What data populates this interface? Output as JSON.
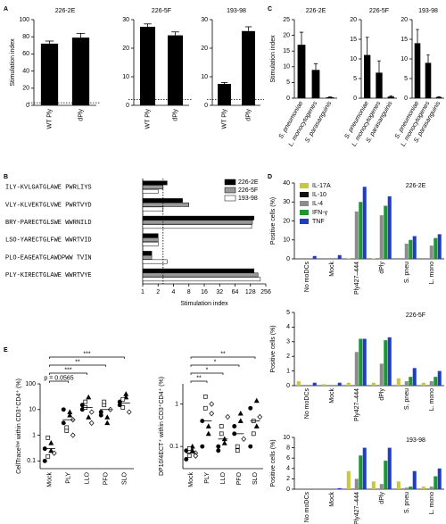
{
  "chart_data": [
    {
      "type": "bar",
      "panel": "A",
      "title": "226-2E",
      "ylabel": "Stimulation index",
      "categories": [
        "WT Ply",
        "dPly"
      ],
      "values": [
        72,
        79
      ],
      "errors": [
        3,
        5
      ],
      "threshold": 3,
      "ylim": [
        0,
        100
      ],
      "yticks": [
        0,
        20,
        40,
        60,
        80,
        100
      ],
      "color": "#000000"
    },
    {
      "type": "bar",
      "title": "226-5F",
      "categories": [
        "WT Ply",
        "dPly"
      ],
      "values": [
        27.5,
        24.5
      ],
      "errors": [
        1,
        1.2
      ],
      "threshold": 2,
      "ylim": [
        0,
        30
      ],
      "yticks": [
        0,
        10,
        20,
        30
      ],
      "color": "#000000"
    },
    {
      "type": "bar",
      "title": "193-98",
      "categories": [
        "WT Ply",
        "dPly"
      ],
      "values": [
        7.5,
        26
      ],
      "errors": [
        0.5,
        1.5
      ],
      "threshold": 2,
      "ylim": [
        0,
        30
      ],
      "yticks": [
        0,
        10,
        20,
        30
      ],
      "color": "#000000"
    },
    {
      "type": "bar",
      "panel": "C",
      "title": "226-2E",
      "ylabel": "Stimulation index",
      "categories": [
        "S. pneumoniae",
        "L. monocytogenes",
        "S. parasanguinis"
      ],
      "values": [
        17,
        9,
        0.3
      ],
      "errors": [
        4,
        2,
        0.1
      ],
      "ylim": [
        0,
        25
      ],
      "yticks": [
        0,
        5,
        10,
        15,
        20,
        25
      ],
      "color": "#000000"
    },
    {
      "type": "bar",
      "title": "226-5F",
      "categories": [
        "S. pneumoniae",
        "L. monocytogenes",
        "S. parasanguinis"
      ],
      "values": [
        11,
        6.5,
        0.4
      ],
      "errors": [
        4.5,
        3,
        0.2
      ],
      "ylim": [
        0,
        20
      ],
      "yticks": [
        0,
        5,
        10,
        15,
        20
      ],
      "color": "#000000"
    },
    {
      "type": "bar",
      "title": "193-98",
      "categories": [
        "S. pneumoniae",
        "L. monocytogenes",
        "S. parasanguinis"
      ],
      "values": [
        14,
        9,
        0.3
      ],
      "errors": [
        3.5,
        2,
        0.1
      ],
      "ylim": [
        0,
        20
      ],
      "yticks": [
        0,
        5,
        10,
        15,
        20
      ],
      "color": "#000000"
    },
    {
      "type": "hbar",
      "panel": "B",
      "xlabel": "Stimulation index",
      "categories": [
        "ILY-KVLGATGLAWE PWRLIYS",
        "VLY-KLVEKTGLVWE PWRTVYD",
        "BRY-PARECTGLSWE WWRNILD",
        "LSO-YARECTGLFWE WWRTVID",
        "PLO-EAGEATGLAWDPWW TVIN",
        "PLY-KIRECTGLAWE WWRTVYE"
      ],
      "series": [
        {
          "name": "226-2E",
          "color": "#000000",
          "values": [
            3,
            6,
            150,
            2,
            1.5,
            150
          ]
        },
        {
          "name": "226-5F",
          "color": "#999999",
          "values": [
            2.5,
            8,
            140,
            2,
            1.5,
            180
          ]
        },
        {
          "name": "193-98",
          "color": "#ffffff",
          "values": [
            2,
            2.5,
            135,
            2,
            3,
            200
          ]
        }
      ],
      "xlim": [
        1,
        256
      ],
      "xticks": [
        1,
        2,
        4,
        8,
        16,
        32,
        64,
        128,
        256
      ],
      "log_base": 2,
      "threshold": 2.5
    },
    {
      "type": "grouped_bar",
      "panel": "D",
      "title": "226-2E",
      "ylabel": "Positive cells (%)",
      "legend": true,
      "categories": [
        "No moDCs",
        "Mock",
        "Ply427–444",
        "dPly",
        "S. pneu",
        "L. mono"
      ],
      "series": [
        {
          "name": "IL-17A",
          "color": "#c8c83c",
          "values": [
            0,
            0,
            0.3,
            0.3,
            0,
            0
          ]
        },
        {
          "name": "IL-10",
          "color": "#111111",
          "values": [
            0,
            0,
            0,
            0,
            0,
            0
          ]
        },
        {
          "name": "IL-4",
          "color": "#8c8c8c",
          "values": [
            0,
            0,
            25,
            23,
            8,
            7
          ]
        },
        {
          "name": "IFN-γ",
          "color": "#1e9632",
          "values": [
            0,
            0,
            30,
            28,
            10,
            11
          ]
        },
        {
          "name": "TNF",
          "color": "#1e3cc8",
          "values": [
            1.5,
            2,
            38,
            33,
            12,
            13
          ]
        }
      ],
      "ylim": [
        0,
        40
      ],
      "yticks": [
        0,
        10,
        20,
        30,
        40
      ]
    },
    {
      "type": "grouped_bar",
      "title": "226-5F",
      "ylabel": "Positive cells (%)",
      "categories": [
        "No moDCs",
        "Mock",
        "Ply427–444",
        "dPly",
        "S. pneu",
        "L. mono"
      ],
      "series": [
        {
          "color": "#c8c83c",
          "values": [
            0.3,
            0.1,
            0.2,
            0.2,
            0.5,
            0.2
          ]
        },
        {
          "color": "#111111",
          "values": [
            0,
            0,
            0,
            0,
            0,
            0
          ]
        },
        {
          "color": "#8c8c8c",
          "values": [
            0,
            0,
            2.3,
            1.5,
            0.3,
            0.3
          ]
        },
        {
          "color": "#1e9632",
          "values": [
            0,
            0,
            3.2,
            3.1,
            0.6,
            0.6
          ]
        },
        {
          "color": "#1e3cc8",
          "values": [
            0.2,
            0.2,
            3.2,
            3.3,
            1.2,
            1.0
          ]
        }
      ],
      "ylim": [
        0,
        5
      ],
      "yticks": [
        0,
        1,
        2,
        3,
        4,
        5
      ]
    },
    {
      "type": "grouped_bar",
      "title": "193-98",
      "ylabel": "Positive cells (%)",
      "categories": [
        "No moDCs",
        "Mock",
        "Ply427–444",
        "dPly",
        "S. pneu",
        "L. mono"
      ],
      "series": [
        {
          "color": "#c8c83c",
          "values": [
            0,
            0,
            3.5,
            1.5,
            1.5,
            0.5
          ]
        },
        {
          "color": "#111111",
          "values": [
            0,
            0,
            0,
            0,
            0,
            0
          ]
        },
        {
          "color": "#8c8c8c",
          "values": [
            0,
            0,
            2,
            1,
            0.3,
            0.5
          ]
        },
        {
          "color": "#1e9632",
          "values": [
            0,
            0,
            6.5,
            5.5,
            0.5,
            2.5
          ]
        },
        {
          "color": "#1e3cc8",
          "values": [
            0,
            0.2,
            8,
            8,
            3.5,
            4
          ]
        }
      ],
      "ylim": [
        0,
        10
      ],
      "yticks": [
        0,
        2,
        4,
        6,
        8,
        10
      ]
    },
    {
      "type": "strip",
      "panel": "E",
      "ylabel": "CellTraceˡᵒʷ within CD3⁺CD4⁺ (%)",
      "categories": [
        "Mock",
        "PLY",
        "LLO",
        "PFO",
        "SLO"
      ],
      "values": [
        [
          0.3,
          0.15,
          0.5,
          0.2,
          0.1,
          0.8,
          0.25
        ],
        [
          3,
          1.5,
          6,
          4,
          10,
          2,
          8,
          1
        ],
        [
          10,
          20,
          5,
          8,
          15,
          12,
          30,
          3
        ],
        [
          6,
          15,
          3,
          10,
          8,
          20,
          5
        ],
        [
          20,
          12,
          30,
          8,
          15,
          25,
          40
        ]
      ],
      "means": [
        0.3,
        4,
        12,
        10,
        18
      ],
      "ylim": [
        0.05,
        100
      ],
      "yticks": [
        0.1,
        1,
        10,
        100
      ],
      "log_scale": true,
      "brackets": [
        "p = 0.0565",
        "***",
        "**",
        "***"
      ]
    },
    {
      "type": "strip",
      "ylabel": "DP10/4ECT⁺ within CD3⁺CD4⁺ (%)",
      "categories": [
        "Mock",
        "PLY",
        "LLO",
        "PFO",
        "SLO"
      ],
      "values": [
        [
          0.08,
          0.06,
          0.1,
          0.07,
          0.05,
          0.09,
          0.08,
          0.06
        ],
        [
          0.4,
          1.5,
          0.2,
          0.6,
          0.1,
          0.8,
          0.3,
          1
        ],
        [
          0.1,
          0.3,
          0.15,
          0.5,
          0.08,
          0.2,
          0.12
        ],
        [
          0.3,
          0.1,
          0.6,
          0.15,
          0.2,
          0.08,
          0.4
        ],
        [
          0.8,
          0.2,
          1.2,
          0.5,
          0.1,
          0.4,
          0.3
        ]
      ],
      "means": [
        0.07,
        0.4,
        0.15,
        0.2,
        0.4
      ],
      "ylim": [
        0.03,
        3
      ],
      "yticks": [
        0.1,
        1
      ],
      "log_scale": true,
      "brackets": [
        "**",
        "*",
        "*",
        "**"
      ]
    }
  ]
}
